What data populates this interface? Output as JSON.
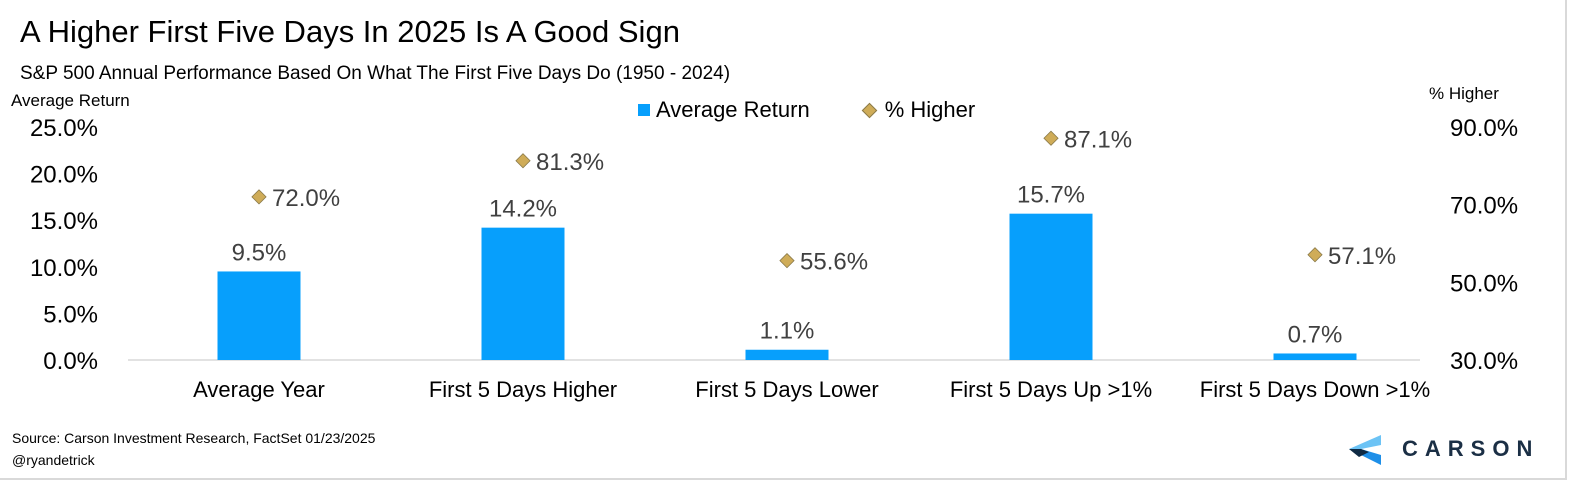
{
  "title": "A Higher First Five Days In 2025 Is A Good Sign",
  "subtitle": "S&P 500 Annual Performance Based On What The First Five Days Do (1950 - 2024)",
  "source": "Source: Carson Investment Research, FactSet 01/23/2025",
  "handle": "@ryandetrick",
  "logo_text": "CARSON",
  "chart_data": {
    "type": "bar",
    "categories": [
      "Average Year",
      "First 5 Days Higher",
      "First 5 Days Lower",
      "First 5 Days Up >1%",
      "First 5 Days Down >1%"
    ],
    "series": [
      {
        "name": "Average Return",
        "type": "bar",
        "axis": "left",
        "color": "#079ffc",
        "values": [
          9.5,
          14.2,
          1.1,
          15.7,
          0.7
        ],
        "labels": [
          "9.5%",
          "14.2%",
          "1.1%",
          "15.7%",
          "0.7%"
        ]
      },
      {
        "name": "% Higher",
        "type": "scatter",
        "marker": "diamond",
        "axis": "right",
        "color": "#cfac58",
        "values": [
          72.0,
          81.3,
          55.6,
          87.1,
          57.1
        ],
        "labels": [
          "72.0%",
          "81.3%",
          "55.6%",
          "87.1%",
          "57.1%"
        ]
      }
    ],
    "ylabel": "Average Return",
    "ylabel_right": "% Higher",
    "ylim": [
      0,
      25
    ],
    "ylim_right": [
      30,
      90
    ],
    "yticks": [
      "0.0%",
      "5.0%",
      "10.0%",
      "15.0%",
      "20.0%",
      "25.0%"
    ],
    "yticks_values": [
      0,
      5,
      10,
      15,
      20,
      25
    ],
    "yticks_right": [
      "30.0%",
      "50.0%",
      "70.0%",
      "90.0%"
    ],
    "yticks_right_values": [
      30,
      50,
      70,
      90
    ],
    "grid": false,
    "legend": "top-center"
  }
}
